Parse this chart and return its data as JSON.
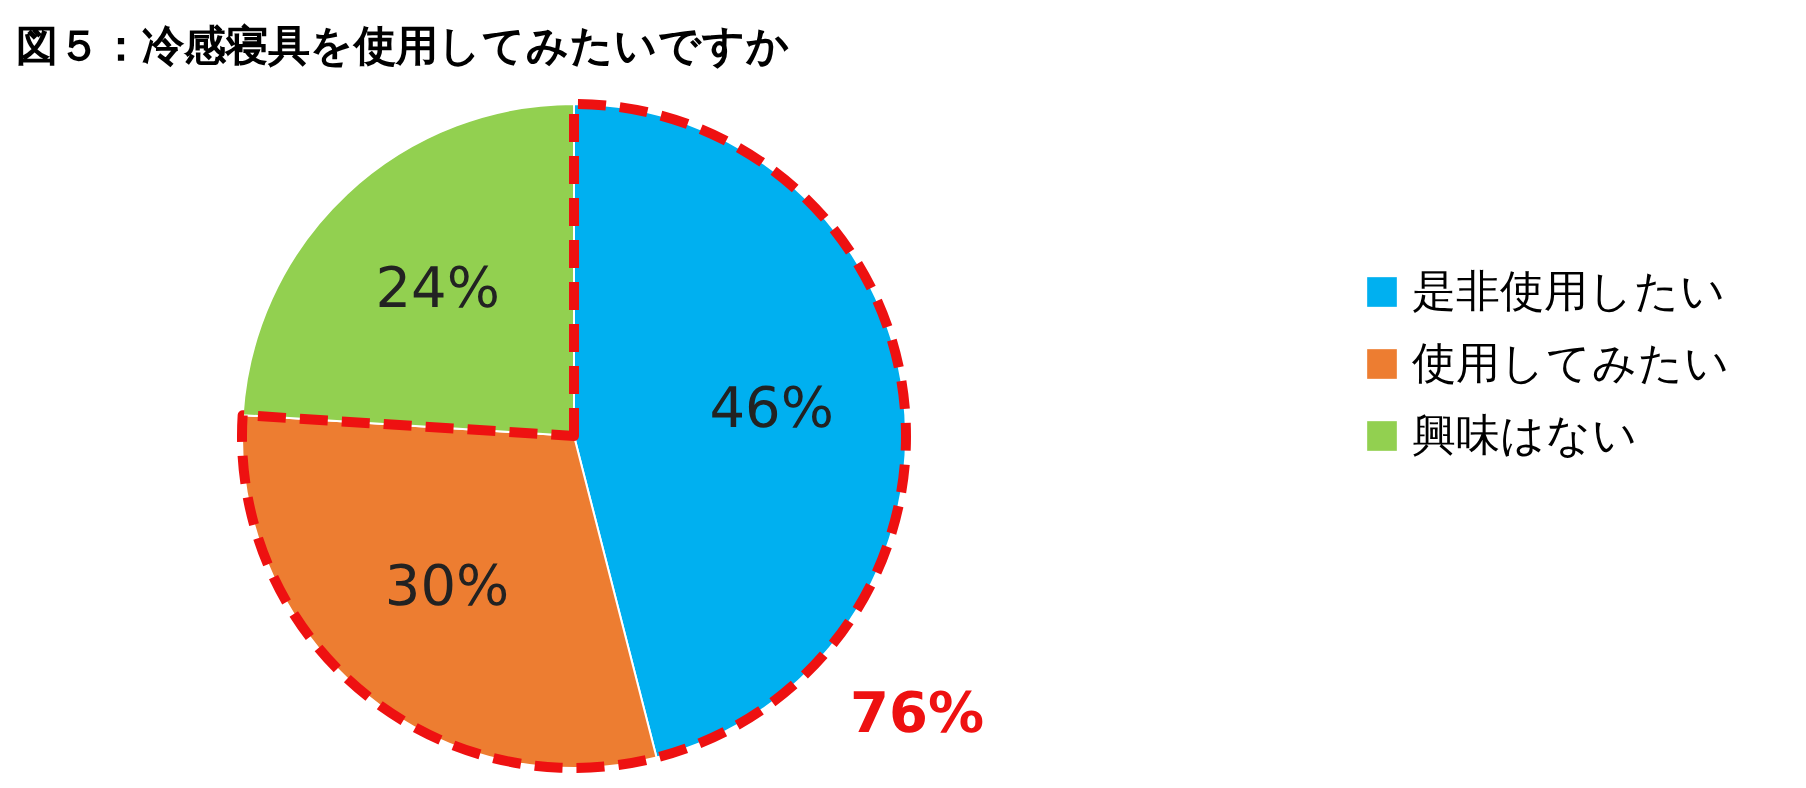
{
  "chart_data": {
    "type": "pie",
    "title": "図５：冷感寝具を使用してみたいですか",
    "categories": [
      "是非使用したい",
      "使用してみたい",
      "興味はない"
    ],
    "values": [
      46,
      30,
      24
    ],
    "colors": [
      "#00b0f0",
      "#ed7d31",
      "#92d050"
    ],
    "value_labels": [
      "46%",
      "30%",
      "24%"
    ],
    "legend": "right",
    "annotations": [
      "76%"
    ]
  }
}
